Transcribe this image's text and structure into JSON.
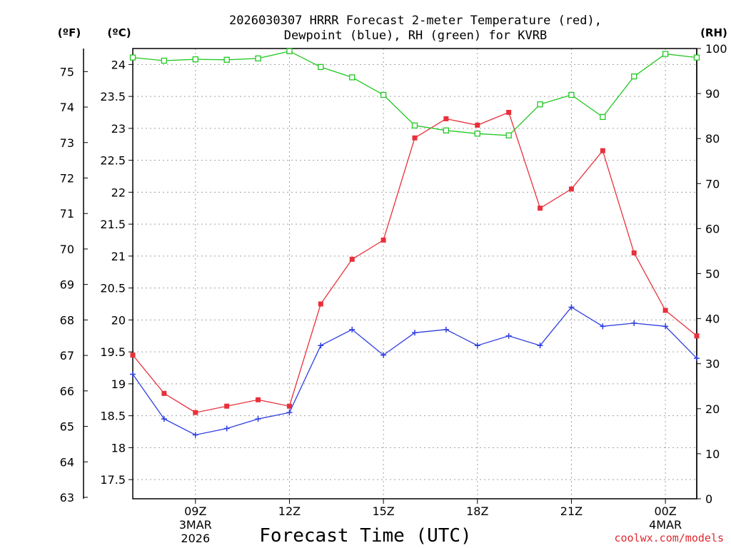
{
  "chart_data": {
    "type": "line",
    "title_line1": "2026030307 HRRR Forecast 2-meter Temperature (red),",
    "title_line2": "Dewpoint (blue), RH (green) for KVRB",
    "xlabel": "Forecast Time (UTC)",
    "credit": "coolwx.com/models",
    "unit_f": "(ºF)",
    "unit_c": "(ºC)",
    "unit_rh": "(RH)",
    "x_hours": [
      7,
      8,
      9,
      10,
      11,
      12,
      13,
      14,
      15,
      16,
      17,
      18,
      19,
      20,
      21,
      22,
      23,
      24,
      25
    ],
    "xlim": [
      7,
      25
    ],
    "x_ticks": [
      {
        "hour": 9,
        "label": "09Z",
        "sub1": "3MAR",
        "sub2": "2026"
      },
      {
        "hour": 12,
        "label": "12Z",
        "sub1": "",
        "sub2": ""
      },
      {
        "hour": 15,
        "label": "15Z",
        "sub1": "",
        "sub2": ""
      },
      {
        "hour": 18,
        "label": "18Z",
        "sub1": "",
        "sub2": ""
      },
      {
        "hour": 21,
        "label": "21Z",
        "sub1": "",
        "sub2": ""
      },
      {
        "hour": 24,
        "label": "00Z",
        "sub1": "4MAR",
        "sub2": ""
      }
    ],
    "celsius_axis": {
      "range": [
        17.2,
        24.25
      ],
      "ticks": [
        "17.5",
        "18",
        "18.5",
        "19",
        "19.5",
        "20",
        "20.5",
        "21",
        "21.5",
        "22",
        "22.5",
        "23",
        "23.5",
        "24"
      ]
    },
    "fahrenheit_axis": {
      "ticks": [
        "63",
        "64",
        "65",
        "66",
        "67",
        "68",
        "69",
        "70",
        "71",
        "72",
        "73",
        "74",
        "75"
      ]
    },
    "rh_axis": {
      "range": [
        0,
        100
      ],
      "ticks": [
        "0",
        "10",
        "20",
        "30",
        "40",
        "50",
        "60",
        "70",
        "80",
        "90",
        "100"
      ]
    },
    "series": [
      {
        "name": "Temperature",
        "color": "#e8313b",
        "marker": "filled-square",
        "axis": "c",
        "values": [
          19.45,
          18.85,
          18.55,
          18.65,
          18.75,
          18.65,
          20.25,
          20.95,
          21.25,
          22.85,
          23.15,
          23.05,
          23.25,
          21.75,
          22.05,
          22.65,
          21.05,
          20.15,
          19.75
        ]
      },
      {
        "name": "Dewpoint",
        "color": "#2e3ee0",
        "marker": "plus",
        "axis": "c",
        "values": [
          19.15,
          18.45,
          18.2,
          18.3,
          18.45,
          18.55,
          19.6,
          19.85,
          19.45,
          19.8,
          19.85,
          19.6,
          19.75,
          19.6,
          20.2,
          19.9,
          19.95,
          19.9,
          19.4
        ]
      },
      {
        "name": "RH",
        "color": "#22c822",
        "marker": "open-square",
        "axis": "rh",
        "values": [
          98,
          97.3,
          97.6,
          97.5,
          97.8,
          99.4,
          95.9,
          93.6,
          89.7,
          82.9,
          81.8,
          81.1,
          80.7,
          87.6,
          89.7,
          84.8,
          93.8,
          98.8,
          98
        ]
      }
    ]
  }
}
